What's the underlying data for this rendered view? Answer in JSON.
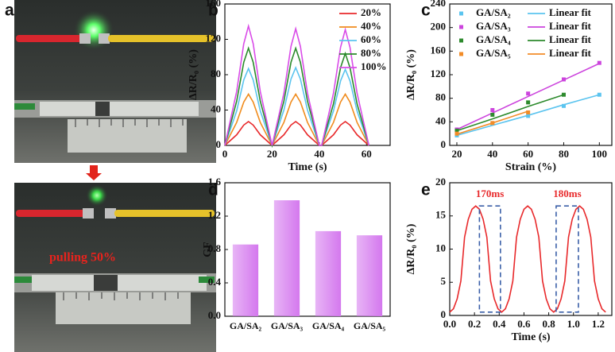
{
  "photo_panel": {
    "label": "a",
    "annotation": "pulling 50%"
  },
  "chart_data": [
    {
      "type": "line",
      "panel_label": "b",
      "xlabel": "Time (s)",
      "ylabel": "ΔR/R₀ (%)",
      "xlim": [
        0,
        70
      ],
      "xticks": [
        0,
        20,
        40,
        60
      ],
      "ylim": [
        0,
        160
      ],
      "yticks": [
        0,
        40,
        80,
        120,
        160
      ],
      "legend": "upper right",
      "x": [
        0,
        5,
        8,
        10,
        12,
        15,
        20,
        25,
        28,
        30,
        32,
        35,
        40,
        41,
        46,
        49,
        51,
        53,
        56,
        61
      ],
      "series": [
        {
          "name": "20%",
          "color": "#e8292b",
          "values": [
            0,
            12,
            23,
            27,
            23,
            12,
            0,
            12,
            23,
            27,
            23,
            12,
            0,
            0,
            12,
            23,
            27,
            23,
            12,
            0
          ]
        },
        {
          "name": "40%",
          "color": "#f08c1e",
          "values": [
            0,
            26,
            49,
            58,
            49,
            26,
            0,
            26,
            49,
            58,
            49,
            26,
            0,
            0,
            26,
            49,
            58,
            49,
            26,
            0
          ]
        },
        {
          "name": "60%",
          "color": "#5bc4ef",
          "values": [
            0,
            39,
            74,
            87,
            74,
            39,
            0,
            40,
            75,
            88,
            75,
            40,
            0,
            0,
            39,
            73,
            86,
            73,
            39,
            0
          ]
        },
        {
          "name": "80%",
          "color": "#2a8a2a",
          "values": [
            0,
            50,
            94,
            110,
            94,
            50,
            0,
            50,
            94,
            110,
            94,
            50,
            0,
            0,
            47,
            88,
            104,
            88,
            47,
            0
          ]
        },
        {
          "name": "100%",
          "color": "#d94ce8",
          "values": [
            0,
            61,
            115,
            135,
            115,
            61,
            0,
            59,
            112,
            132,
            112,
            59,
            0,
            0,
            59,
            111,
            131,
            111,
            59,
            0
          ]
        }
      ]
    },
    {
      "type": "scatter",
      "panel_label": "c",
      "xlabel": "Strain (%)",
      "ylabel": "ΔR/R₀ (%)",
      "xlim": [
        16,
        107
      ],
      "xticks": [
        20,
        40,
        60,
        80,
        100
      ],
      "ylim": [
        0,
        240
      ],
      "yticks": [
        0,
        40,
        80,
        120,
        160,
        200,
        240
      ],
      "legend": "upper left",
      "legend_columns": 2,
      "series": [
        {
          "name": "GA/SA₂",
          "type": "scatter",
          "color": "#5bc4ef",
          "x": [
            20,
            40,
            60,
            80,
            100
          ],
          "values": [
            17,
            37,
            50,
            67,
            86
          ]
        },
        {
          "name": "Linear fit",
          "type": "line",
          "color": "#5bc4ef",
          "x": [
            20,
            40,
            60,
            80,
            100
          ],
          "values": [
            17,
            34,
            51,
            69,
            86
          ]
        },
        {
          "name": "GA/SA₃",
          "type": "scatter",
          "color": "#cc44dd",
          "x": [
            20,
            40,
            60,
            80,
            100
          ],
          "values": [
            27,
            60,
            88,
            112,
            140
          ]
        },
        {
          "name": "Linear fit",
          "type": "line",
          "color": "#cc44dd",
          "x": [
            20,
            40,
            60,
            80,
            100
          ],
          "values": [
            27,
            55,
            83,
            111,
            139
          ]
        },
        {
          "name": "GA/SA₄",
          "type": "scatter",
          "color": "#2d8a2d",
          "x": [
            20,
            40,
            60,
            80
          ],
          "values": [
            25,
            52,
            73,
            86
          ]
        },
        {
          "name": "Linear fit",
          "type": "line",
          "color": "#2d8a2d",
          "x": [
            20,
            40,
            60,
            80
          ],
          "values": [
            25,
            45,
            66,
            86
          ]
        },
        {
          "name": "GA/SA₅",
          "type": "scatter",
          "color": "#f28c28",
          "x": [
            20,
            40,
            60
          ],
          "values": [
            20,
            38,
            56
          ]
        },
        {
          "name": "Linear fit",
          "type": "line",
          "color": "#f28c28",
          "x": [
            20,
            40,
            60
          ],
          "values": [
            19,
            38,
            58
          ]
        }
      ]
    },
    {
      "type": "bar",
      "panel_label": "d",
      "ylabel": "GF",
      "color": "#d478ee",
      "categories": [
        "GA/SA₂",
        "GA/SA₃",
        "GA/SA₄",
        "GA/SA₅"
      ],
      "values": [
        0.86,
        1.39,
        1.02,
        0.97
      ],
      "ylim": [
        0,
        1.6
      ],
      "yticks": [
        {
          "value": 0,
          "label": "0.0"
        },
        0.4,
        0.8,
        1.2,
        1.6
      ]
    },
    {
      "type": "line",
      "panel_label": "e",
      "xlabel": "Time (s)",
      "ylabel": "ΔR/R₀ (%)",
      "xlim": [
        0,
        1.31
      ],
      "xticks": [
        {
          "value": 0,
          "label": "0.0"
        },
        0.2,
        0.4,
        0.6,
        0.8,
        {
          "value": 1,
          "label": "1.0"
        },
        1.2
      ],
      "ylim": [
        0,
        20
      ],
      "yticks": [
        0,
        5,
        10,
        15,
        20
      ],
      "x": [
        0,
        0.03,
        0.06,
        0.09,
        0.12,
        0.15,
        0.18,
        0.21,
        0.24,
        0.27,
        0.3,
        0.33,
        0.36,
        0.39,
        0.42,
        0.45,
        0.48,
        0.51,
        0.54,
        0.57,
        0.6,
        0.63,
        0.66,
        0.69,
        0.72,
        0.75,
        0.78,
        0.81,
        0.84,
        0.87,
        0.9,
        0.93,
        0.96,
        0.99,
        1.02,
        1.05,
        1.08,
        1.11,
        1.14,
        1.17,
        1.2,
        1.23,
        1.26
      ],
      "series": [
        {
          "color": "#e8292b",
          "values": [
            0.5,
            1.0,
            2.5,
            5.2,
            11.8,
            14.5,
            16.0,
            16.5,
            16.0,
            14.5,
            11.8,
            5.2,
            2.5,
            1.0,
            0.5,
            1.0,
            2.5,
            5.2,
            11.8,
            14.5,
            16.0,
            16.5,
            16.0,
            14.5,
            11.8,
            5.2,
            2.5,
            1.0,
            0.5,
            1.0,
            2.5,
            5.2,
            11.8,
            14.5,
            16.0,
            16.5,
            16.0,
            14.5,
            11.8,
            5.2,
            2.5,
            1.0,
            0.5
          ]
        }
      ],
      "annotations": [
        {
          "text": "170ms",
          "color": "#e8292b",
          "box_color": "#3a5fa8",
          "x0": 0.24,
          "x1": 0.41,
          "y0": 0.5,
          "y1": 16.5
        },
        {
          "text": "180ms",
          "color": "#e8292b",
          "box_color": "#3a5fa8",
          "x0": 0.86,
          "x1": 1.04,
          "y0": 0.5,
          "y1": 16.5
        }
      ]
    }
  ]
}
